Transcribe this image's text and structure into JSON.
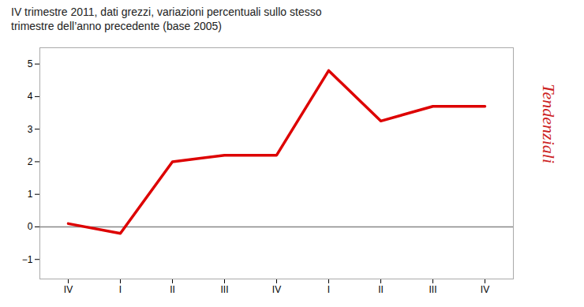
{
  "chart_data": {
    "type": "line",
    "title": "IV trimestre 2011, dati grezzi, variazioni percentuali sullo stesso",
    "subtitle": "trimestre dell’anno precedente (base 2005)",
    "categories": [
      "IV",
      "I",
      "II",
      "III",
      "IV",
      "I",
      "II",
      "III",
      "IV"
    ],
    "values": [
      0.1,
      -0.2,
      2.0,
      2.2,
      2.2,
      4.8,
      3.25,
      3.7,
      3.7
    ],
    "color": "#dd0000",
    "ylim": [
      -1.6,
      5.5
    ],
    "yticks": [
      -1,
      0,
      1,
      2,
      3,
      4,
      5
    ],
    "grid": false,
    "annotations": [
      {
        "text": "Tendenziali",
        "color": "#cc2222"
      }
    ]
  }
}
